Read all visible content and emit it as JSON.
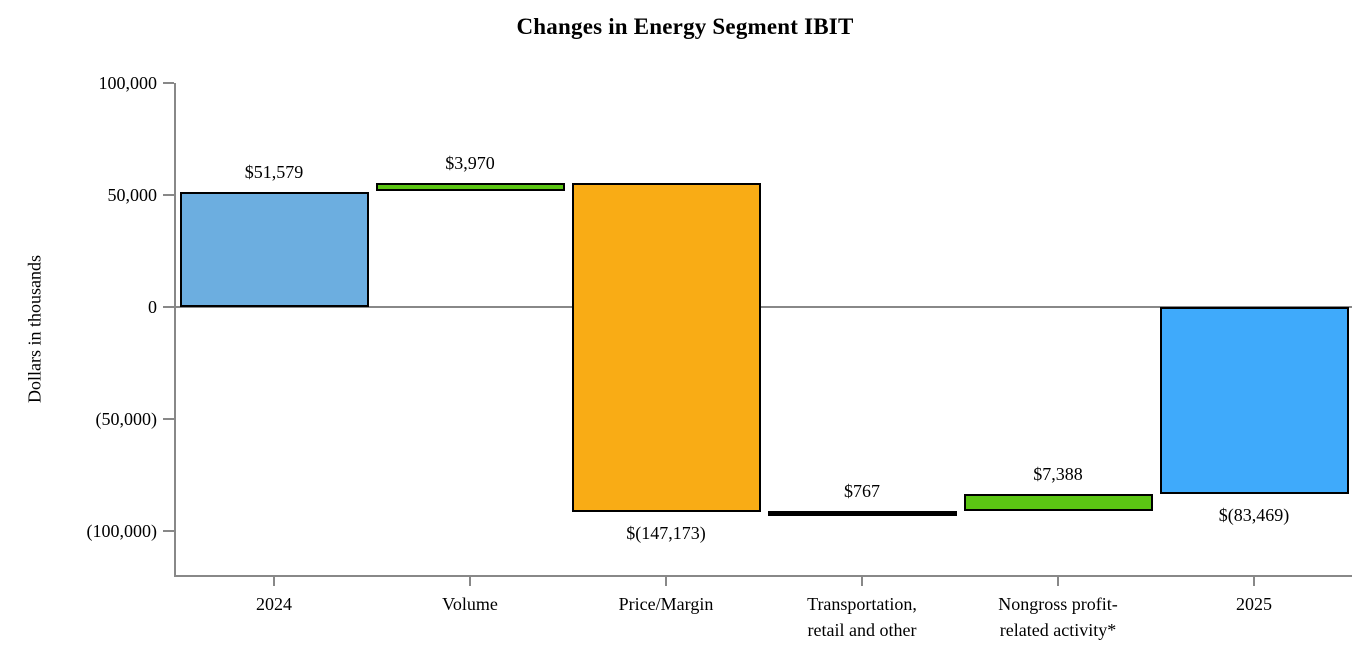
{
  "chart_data": {
    "type": "bar",
    "subtype": "waterfall",
    "title": "Changes in Energy Segment IBIT",
    "ylabel": "Dollars in thousands",
    "units": "dollars in thousands",
    "ylim": [
      -119600,
      100000
    ],
    "grid": false,
    "legend": null,
    "yticks": [
      {
        "value": 100000,
        "label": "100,000"
      },
      {
        "value": 50000,
        "label": "50,000"
      },
      {
        "value": 0,
        "label": "0"
      },
      {
        "value": -50000,
        "label": "(50,000)"
      },
      {
        "value": -100000,
        "label": "(100,000)"
      }
    ],
    "segments": [
      {
        "category": "2024",
        "from": 0,
        "to": 51579,
        "value": 51579,
        "value_label": "$51,579",
        "label_position": "above",
        "color": "#6CAEE0"
      },
      {
        "category": "Volume",
        "from": 51579,
        "to": 55549,
        "value": 3970,
        "value_label": "$3,970",
        "label_position": "above",
        "color": "#5BC513"
      },
      {
        "category": "Price/Margin",
        "from": 55549,
        "to": -91624,
        "value": -147173,
        "value_label": "$(147,173)",
        "label_position": "below",
        "color": "#F9AC15"
      },
      {
        "category": "Transportation,\nretail and other",
        "from": -91624,
        "to": -90857,
        "value": 767,
        "value_label": "$767",
        "label_position": "above",
        "color": "#000000"
      },
      {
        "category": "Nongross profit-\nrelated activity*",
        "from": -90857,
        "to": -83469,
        "value": 7388,
        "value_label": "$7,388",
        "label_position": "above",
        "color": "#5BC513"
      },
      {
        "category": "2025",
        "from": 0,
        "to": -83469,
        "value": -83469,
        "value_label": "$(83,469)",
        "label_position": "below",
        "color": "#3FAAFB"
      }
    ],
    "colors": {
      "total_start_bar": "#6CAEE0",
      "total_end_bar": "#3FAAFB",
      "increase_bar": "#5BC513",
      "decrease_bar": "#F9AC15",
      "minor_bar": "#000000",
      "bar_border": "#000000",
      "axis": "#888888",
      "text": "#000000",
      "background": "#FFFFFF"
    }
  }
}
